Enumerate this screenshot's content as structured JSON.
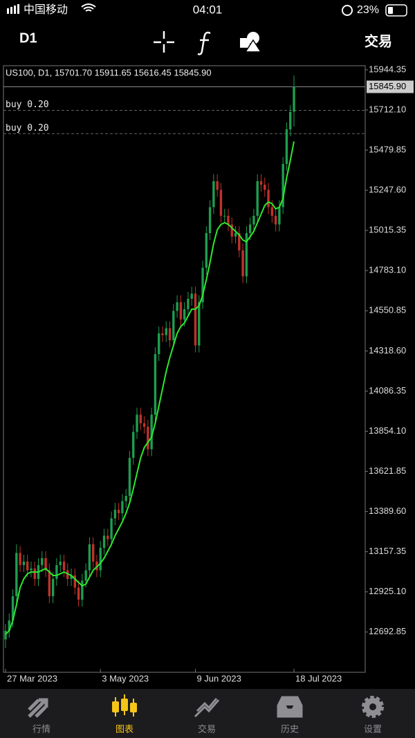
{
  "status_bar": {
    "carrier": "中国移动",
    "time": "04:01",
    "battery": "23%"
  },
  "toolbar": {
    "timeframe": "D1",
    "trade": "交易"
  },
  "tabs": [
    {
      "label": "行情"
    },
    {
      "label": "图表",
      "active": true
    },
    {
      "label": "交易"
    },
    {
      "label": "历史"
    },
    {
      "label": "设置"
    }
  ],
  "chart_data": {
    "type": "candlestick",
    "title": "US100, D1, 15701.70 15911.65 15616.45 15845.90",
    "categories": [
      "27 Mar 2023",
      null,
      null,
      null,
      null,
      null,
      null,
      null,
      null,
      null,
      null,
      null,
      null,
      null,
      null,
      null,
      null,
      null,
      null,
      null,
      null,
      null,
      null,
      null,
      null,
      null,
      "3 May 2023",
      null,
      null,
      null,
      null,
      null,
      null,
      null,
      null,
      null,
      null,
      null,
      null,
      null,
      null,
      null,
      null,
      null,
      null,
      null,
      null,
      null,
      null,
      null,
      null,
      null,
      "9 Jun 2023",
      null,
      null,
      null,
      null,
      null,
      null,
      null,
      null,
      null,
      null,
      null,
      null,
      null,
      null,
      null,
      null,
      null,
      null,
      null,
      null,
      null,
      null,
      null,
      null,
      null,
      null,
      "18 Jul 2023"
    ],
    "open": [
      12650,
      12700,
      12760,
      12900,
      13150,
      13080,
      13100,
      13050,
      13060,
      13000,
      13080,
      13120,
      13050,
      12900,
      13000,
      13080,
      13100,
      13050,
      13000,
      13020,
      12950,
      12880,
      12990,
      13050,
      13200,
      13100,
      13050,
      13180,
      13250,
      13230,
      13350,
      13400,
      13380,
      13450,
      13480,
      13700,
      13850,
      13950,
      13900,
      13880,
      13750,
      13950,
      14300,
      14420,
      14410,
      14450,
      14380,
      14550,
      14600,
      14500,
      14560,
      14620,
      14650,
      14350,
      14600,
      14800,
      15000,
      15150,
      15300,
      15250,
      15100,
      15100,
      15050,
      14980,
      15000,
      14900,
      14750,
      15000,
      15050,
      15100,
      15300,
      15280,
      15250,
      15150,
      15100,
      15050,
      15150,
      15400,
      15600,
      15701.7
    ],
    "high": [
      12740,
      12800,
      12940,
      13200,
      13190,
      13140,
      13140,
      13100,
      13100,
      13120,
      13160,
      13160,
      13090,
      13040,
      13120,
      13140,
      13140,
      13090,
      13060,
      13060,
      12990,
      13030,
      13090,
      13240,
      13240,
      13140,
      13220,
      13290,
      13290,
      13390,
      13440,
      13440,
      13490,
      13520,
      13740,
      13890,
      13990,
      13990,
      13940,
      13920,
      13990,
      14340,
      14460,
      14460,
      14490,
      14490,
      14590,
      14640,
      14640,
      14600,
      14660,
      14690,
      14690,
      14640,
      14840,
      15040,
      15190,
      15340,
      15340,
      15290,
      15140,
      15140,
      15090,
      15040,
      15040,
      14940,
      15040,
      15090,
      15140,
      15340,
      15340,
      15320,
      15290,
      15190,
      15140,
      15190,
      15440,
      15640,
      15740,
      15911.65
    ],
    "low": [
      12600,
      12660,
      12720,
      12860,
      13040,
      13040,
      13010,
      13010,
      12960,
      12960,
      13040,
      13010,
      12860,
      12860,
      12960,
      13040,
      13010,
      12960,
      12960,
      12910,
      12840,
      12840,
      12950,
      13010,
      13060,
      13010,
      13010,
      13140,
      13190,
      13190,
      13310,
      13340,
      13340,
      13410,
      13440,
      13660,
      13810,
      13860,
      13840,
      13710,
      13710,
      13910,
      14260,
      14370,
      14370,
      14340,
      14340,
      14510,
      14460,
      14460,
      14520,
      14580,
      14310,
      14310,
      14560,
      14760,
      14960,
      15110,
      15210,
      15060,
      15060,
      15010,
      14940,
      14940,
      14860,
      14710,
      14710,
      14960,
      15010,
      15060,
      15240,
      15210,
      15110,
      15060,
      15010,
      15010,
      15110,
      15360,
      15560,
      15616.45
    ],
    "close": [
      12700,
      12760,
      12900,
      13150,
      13080,
      13100,
      13050,
      13060,
      13000,
      13080,
      13120,
      13050,
      12900,
      13000,
      13080,
      13100,
      13050,
      13000,
      13020,
      12950,
      12880,
      12990,
      13050,
      13200,
      13100,
      13050,
      13180,
      13250,
      13230,
      13350,
      13400,
      13380,
      13450,
      13480,
      13700,
      13850,
      13950,
      13900,
      13880,
      13750,
      13950,
      14300,
      14420,
      14410,
      14450,
      14380,
      14550,
      14600,
      14500,
      14560,
      14620,
      14650,
      14350,
      14600,
      14800,
      15000,
      15150,
      15300,
      15250,
      15100,
      15100,
      15050,
      14980,
      15000,
      14900,
      14750,
      15000,
      15050,
      15100,
      15300,
      15280,
      15250,
      15150,
      15100,
      15050,
      15150,
      15400,
      15600,
      15700,
      15845.9
    ],
    "up_color": "#1e9e50",
    "down_color": "#c0322b",
    "moving_average": {
      "color": "#2ee82e",
      "values": [
        12680,
        12700,
        12760,
        12850,
        12950,
        13000,
        13030,
        13040,
        13040,
        13040,
        13050,
        13060,
        13040,
        13020,
        13020,
        13030,
        13040,
        13030,
        13020,
        13000,
        12980,
        12960,
        12970,
        13010,
        13050,
        13070,
        13090,
        13120,
        13160,
        13200,
        13250,
        13290,
        13330,
        13380,
        13440,
        13520,
        13610,
        13700,
        13760,
        13790,
        13820,
        13900,
        14000,
        14100,
        14200,
        14280,
        14350,
        14420,
        14460,
        14480,
        14520,
        14560,
        14560,
        14580,
        14640,
        14730,
        14830,
        14940,
        15020,
        15050,
        15060,
        15050,
        15030,
        15010,
        14990,
        14960,
        14950,
        14980,
        15010,
        15060,
        15110,
        15160,
        15180,
        15170,
        15140,
        15150,
        15200,
        15320,
        15420,
        15530
      ]
    },
    "current_price": {
      "value": 15845.9,
      "label": "15845.90"
    },
    "orders": [
      {
        "label": "buy 0.20",
        "price": 15710
      },
      {
        "label": "buy 0.20",
        "price": 15575
      }
    ],
    "ylim": [
      12460,
      15968
    ],
    "yticks": [
      {
        "value": 15944.35,
        "label": "15944.35"
      },
      {
        "value": 15712.1,
        "label": "15712.10"
      },
      {
        "value": 15479.85,
        "label": "15479.85"
      },
      {
        "value": 15247.6,
        "label": "15247.60"
      },
      {
        "value": 15015.35,
        "label": "15015.35"
      },
      {
        "value": 14783.1,
        "label": "14783.10"
      },
      {
        "value": 14550.85,
        "label": "14550.85"
      },
      {
        "value": 14318.6,
        "label": "14318.60"
      },
      {
        "value": 14086.35,
        "label": "14086.35"
      },
      {
        "value": 13854.1,
        "label": "13854.10"
      },
      {
        "value": 13621.85,
        "label": "13621.85"
      },
      {
        "value": 13389.6,
        "label": "13389.60"
      },
      {
        "value": 13157.35,
        "label": "13157.35"
      },
      {
        "value": 12925.1,
        "label": "12925.10"
      },
      {
        "value": 12692.85,
        "label": "12692.85"
      }
    ]
  }
}
